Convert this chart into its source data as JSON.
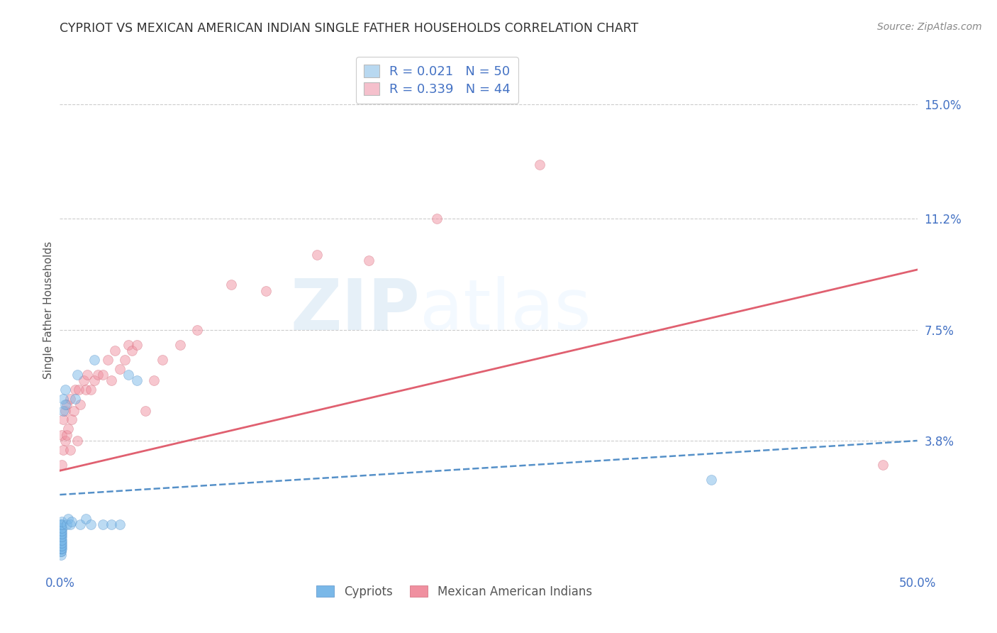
{
  "title": "CYPRIOT VS MEXICAN AMERICAN INDIAN SINGLE FATHER HOUSEHOLDS CORRELATION CHART",
  "source_text": "Source: ZipAtlas.com",
  "ylabel": "Single Father Households",
  "ytick_labels": [
    "15.0%",
    "11.2%",
    "7.5%",
    "3.8%"
  ],
  "ytick_values": [
    0.15,
    0.112,
    0.075,
    0.038
  ],
  "xlim": [
    0.0,
    0.5
  ],
  "ylim": [
    -0.005,
    0.168
  ],
  "legend_entries": [
    {
      "label": "R = 0.021   N = 50",
      "color": "#b8d8f0"
    },
    {
      "label": "R = 0.339   N = 44",
      "color": "#f5c0cc"
    }
  ],
  "watermark_zip": "ZIP",
  "watermark_atlas": "atlas",
  "cypriot_color": "#7ab8e8",
  "cypriot_edge": "#5590c8",
  "mexican_color": "#f090a0",
  "mexican_edge": "#d06878",
  "cypriot_x": [
    0.0005,
    0.0005,
    0.0005,
    0.0005,
    0.0005,
    0.0005,
    0.0005,
    0.0005,
    0.0005,
    0.0005,
    0.0005,
    0.0005,
    0.0005,
    0.0005,
    0.0005,
    0.0005,
    0.0005,
    0.0005,
    0.0005,
    0.0005,
    0.001,
    0.001,
    0.001,
    0.001,
    0.001,
    0.001,
    0.001,
    0.001,
    0.001,
    0.001,
    0.002,
    0.002,
    0.003,
    0.003,
    0.004,
    0.005,
    0.006,
    0.007,
    0.009,
    0.01,
    0.012,
    0.015,
    0.018,
    0.02,
    0.025,
    0.03,
    0.035,
    0.04,
    0.045,
    0.38
  ],
  "cypriot_y": [
    0.0,
    0.001,
    0.001,
    0.002,
    0.002,
    0.003,
    0.003,
    0.004,
    0.004,
    0.005,
    0.005,
    0.006,
    0.006,
    0.007,
    0.007,
    0.008,
    0.008,
    0.009,
    0.01,
    0.01,
    0.002,
    0.003,
    0.004,
    0.005,
    0.006,
    0.007,
    0.008,
    0.009,
    0.01,
    0.011,
    0.048,
    0.052,
    0.05,
    0.055,
    0.01,
    0.012,
    0.01,
    0.011,
    0.052,
    0.06,
    0.01,
    0.012,
    0.01,
    0.065,
    0.01,
    0.01,
    0.01,
    0.06,
    0.058,
    0.025
  ],
  "mexican_x": [
    0.001,
    0.001,
    0.002,
    0.002,
    0.003,
    0.003,
    0.004,
    0.004,
    0.005,
    0.006,
    0.006,
    0.007,
    0.008,
    0.009,
    0.01,
    0.011,
    0.012,
    0.014,
    0.015,
    0.016,
    0.018,
    0.02,
    0.022,
    0.025,
    0.028,
    0.03,
    0.032,
    0.035,
    0.038,
    0.04,
    0.042,
    0.045,
    0.05,
    0.055,
    0.06,
    0.07,
    0.08,
    0.1,
    0.12,
    0.15,
    0.18,
    0.22,
    0.28,
    0.48
  ],
  "mexican_y": [
    0.03,
    0.04,
    0.035,
    0.045,
    0.038,
    0.048,
    0.04,
    0.05,
    0.042,
    0.035,
    0.052,
    0.045,
    0.048,
    0.055,
    0.038,
    0.055,
    0.05,
    0.058,
    0.055,
    0.06,
    0.055,
    0.058,
    0.06,
    0.06,
    0.065,
    0.058,
    0.068,
    0.062,
    0.065,
    0.07,
    0.068,
    0.07,
    0.048,
    0.058,
    0.065,
    0.07,
    0.075,
    0.09,
    0.088,
    0.1,
    0.098,
    0.112,
    0.13,
    0.03
  ],
  "cypriot_trendline_x": [
    0.0,
    0.5
  ],
  "cypriot_trendline_y": [
    0.02,
    0.038
  ],
  "mexican_trendline_x": [
    0.0,
    0.5
  ],
  "mexican_trendline_y": [
    0.028,
    0.095
  ],
  "background_color": "#ffffff",
  "grid_color": "#cccccc",
  "title_color": "#333333",
  "axis_label_color": "#555555",
  "tick_label_color_blue": "#4472c4",
  "legend_text_color": "#4472c4",
  "marker_size": 100,
  "marker_alpha": 0.5
}
